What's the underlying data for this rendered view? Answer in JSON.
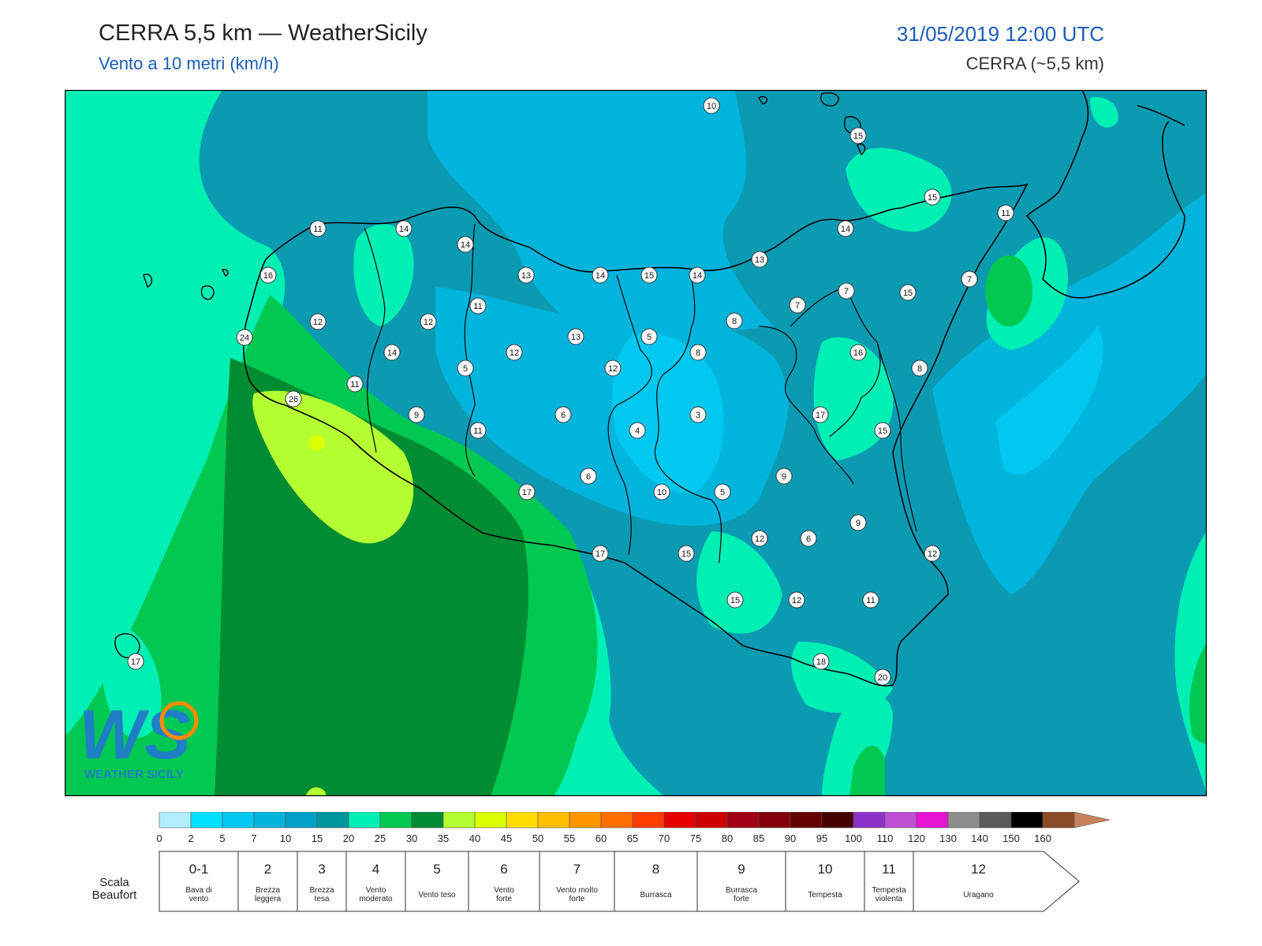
{
  "header": {
    "title": "CERRA 5,5 km — WeatherSicily",
    "subtitle": "Vento a 10 metri (km/h)",
    "datetime": "31/05/2019 12:00 UTC",
    "model": "CERRA (~5,5 km)"
  },
  "logo": {
    "text": "WEATHER SICILY",
    "letters": "WS"
  },
  "colors": {
    "sea_base": "#0a9bb3",
    "accent_blue": "#1a5db8"
  },
  "map_labels": [
    "10",
    "15",
    "15",
    "11",
    "14",
    "11",
    "14",
    "16",
    "13",
    "14",
    "15",
    "14",
    "13",
    "14",
    "15",
    "7",
    "7",
    "7",
    "11",
    "12",
    "12",
    "7",
    "8",
    "24",
    "14",
    "13",
    "5",
    "8",
    "12",
    "5",
    "12",
    "16",
    "11",
    "8",
    "26",
    "9",
    "6",
    "3",
    "17",
    "4",
    "15",
    "11",
    "6",
    "9",
    "17",
    "10",
    "5",
    "9",
    "17",
    "15",
    "12",
    "6",
    "12",
    "15",
    "12",
    "11",
    "17",
    "18",
    "20"
  ],
  "scale": {
    "ticks": [
      "0",
      "2",
      "5",
      "7",
      "10",
      "15",
      "20",
      "25",
      "30",
      "35",
      "40",
      "45",
      "50",
      "55",
      "60",
      "65",
      "70",
      "75",
      "80",
      "85",
      "90",
      "95",
      "100",
      "110",
      "120",
      "130",
      "140",
      "150",
      "160"
    ],
    "colors": [
      "#b3f0ff",
      "#00e0ff",
      "#00c8f0",
      "#00b4dc",
      "#00a0c8",
      "#0096a0",
      "#00f0b4",
      "#00c850",
      "#008c32",
      "#b4ff32",
      "#dcff00",
      "#ffdc00",
      "#ffbe00",
      "#ff9600",
      "#ff6e00",
      "#ff3c00",
      "#e60000",
      "#cd0000",
      "#a00014",
      "#82000a",
      "#640000",
      "#460000",
      "#8c32c8",
      "#be50d2",
      "#e614d2",
      "#8c8c8c",
      "#5a5a5a",
      "#000000",
      "#8c4b28",
      "#c8825a"
    ]
  },
  "beaufort": {
    "label": "Scala Beaufort",
    "levels": [
      {
        "num": "0-1",
        "desc": [
          "Bava di",
          "vento"
        ]
      },
      {
        "num": "2",
        "desc": [
          "Brezza",
          "leggera"
        ]
      },
      {
        "num": "3",
        "desc": [
          "Brezza",
          "tesa"
        ]
      },
      {
        "num": "4",
        "desc": [
          "Vento",
          "moderato"
        ]
      },
      {
        "num": "5",
        "desc": [
          "Vento teso"
        ]
      },
      {
        "num": "6",
        "desc": [
          "Vento",
          "forte"
        ]
      },
      {
        "num": "7",
        "desc": [
          "Vento molto",
          "forte"
        ]
      },
      {
        "num": "8",
        "desc": [
          "Burrasca"
        ]
      },
      {
        "num": "9",
        "desc": [
          "Burrasca",
          "forte"
        ]
      },
      {
        "num": "10",
        "desc": [
          "Tempesta"
        ]
      },
      {
        "num": "11",
        "desc": [
          "Tempesta",
          "violenta"
        ]
      },
      {
        "num": "12",
        "desc": [
          "Uragano"
        ]
      }
    ]
  }
}
